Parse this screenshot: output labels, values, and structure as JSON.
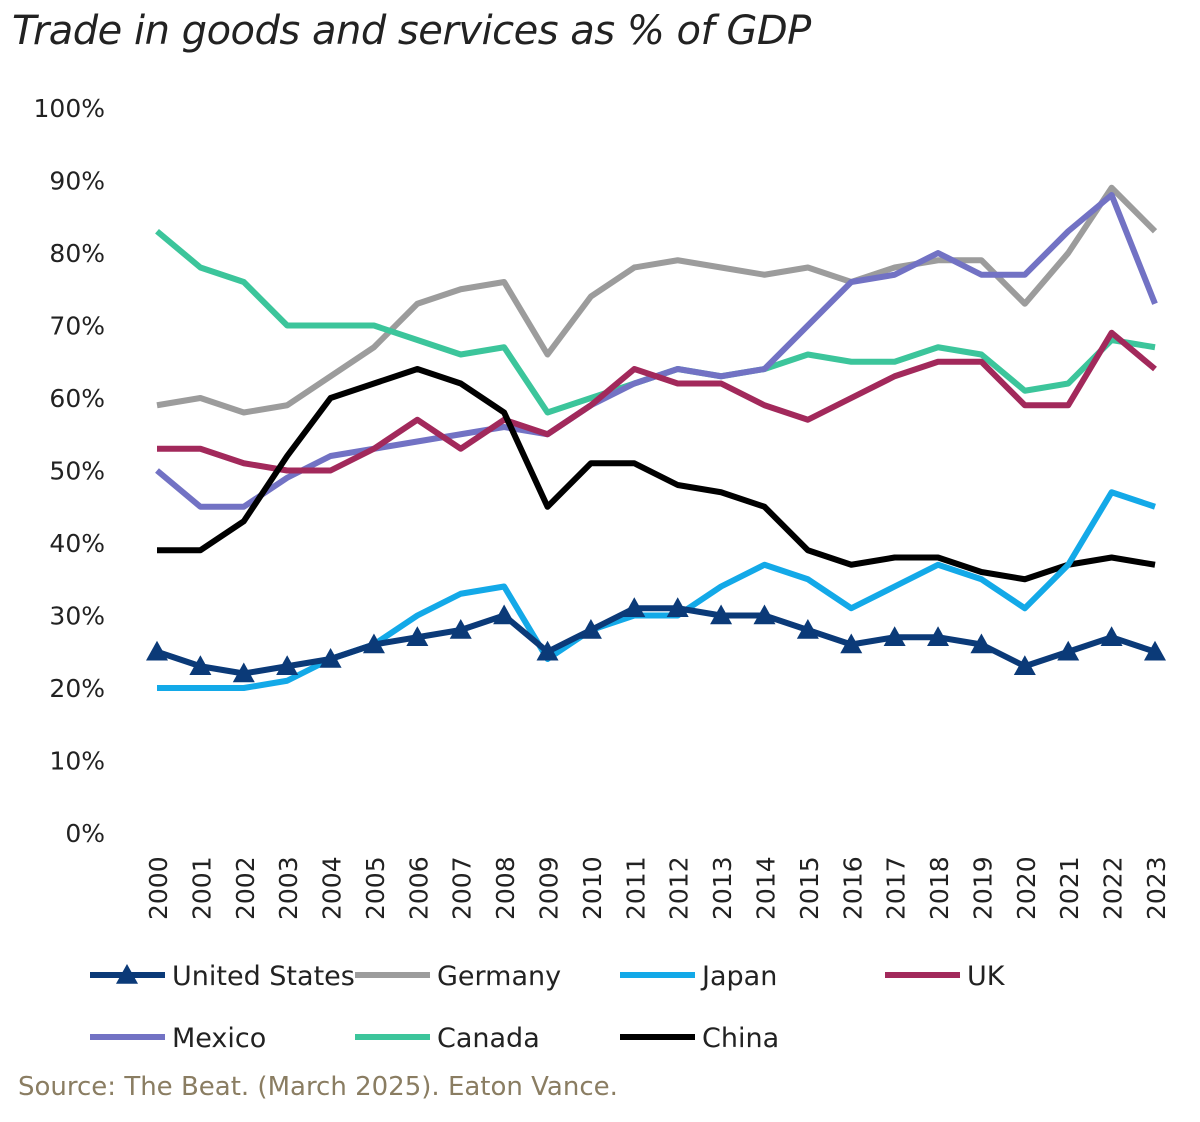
{
  "chart_data": {
    "type": "line",
    "title": "Trade in goods and services as % of GDP",
    "source": "Source: The Beat. (March 2025). Eaton Vance.",
    "xlabel": "",
    "ylabel": "",
    "ylim": [
      0,
      100
    ],
    "yticks": [
      "0%",
      "10%",
      "20%",
      "30%",
      "40%",
      "50%",
      "60%",
      "70%",
      "80%",
      "90%",
      "100%"
    ],
    "grid": false,
    "legend": "bottom",
    "x": [
      "2000",
      "2001",
      "2002",
      "2003",
      "2004",
      "2005",
      "2006",
      "2007",
      "2008",
      "2009",
      "2010",
      "2011",
      "2012",
      "2013",
      "2014",
      "2015",
      "2016",
      "2017",
      "2018",
      "2019",
      "2020",
      "2021",
      "2022",
      "2023"
    ],
    "series": [
      {
        "name": "United States",
        "color": "#0b3a78",
        "marker": "triangle",
        "values": [
          25,
          23,
          22,
          23,
          24,
          26,
          27,
          28,
          30,
          25,
          28,
          31,
          31,
          30,
          30,
          28,
          26,
          27,
          27,
          26,
          23,
          25,
          27,
          25
        ]
      },
      {
        "name": "Germany",
        "color": "#9c9c9c",
        "values": [
          59,
          60,
          58,
          59,
          63,
          67,
          73,
          75,
          76,
          66,
          74,
          78,
          79,
          78,
          77,
          78,
          76,
          78,
          79,
          79,
          73,
          80,
          89,
          83
        ]
      },
      {
        "name": "Japan",
        "color": "#13a9e8",
        "values": [
          20,
          20,
          20,
          21,
          24,
          26,
          30,
          33,
          34,
          24,
          28,
          30,
          30,
          34,
          37,
          35,
          31,
          34,
          37,
          35,
          31,
          37,
          47,
          45
        ]
      },
      {
        "name": "UK",
        "color": "#a2295b",
        "values": [
          53,
          53,
          51,
          50,
          50,
          53,
          57,
          53,
          57,
          55,
          59,
          64,
          62,
          62,
          59,
          57,
          60,
          63,
          65,
          65,
          59,
          59,
          69,
          64
        ]
      },
      {
        "name": "Mexico",
        "color": "#7272c4",
        "values": [
          50,
          45,
          45,
          49,
          52,
          53,
          54,
          55,
          56,
          55,
          59,
          62,
          64,
          63,
          64,
          70,
          76,
          77,
          80,
          77,
          77,
          83,
          88,
          73
        ]
      },
      {
        "name": "Canada",
        "color": "#3cc59b",
        "values": [
          83,
          78,
          76,
          70,
          70,
          70,
          68,
          66,
          67,
          58,
          60,
          62,
          64,
          63,
          64,
          66,
          65,
          65,
          67,
          66,
          61,
          62,
          68,
          67
        ]
      },
      {
        "name": "China",
        "color": "#000000",
        "values": [
          39,
          39,
          43,
          52,
          60,
          62,
          64,
          62,
          58,
          45,
          51,
          51,
          48,
          47,
          45,
          39,
          37,
          38,
          38,
          36,
          35,
          37,
          38,
          37
        ]
      }
    ]
  }
}
